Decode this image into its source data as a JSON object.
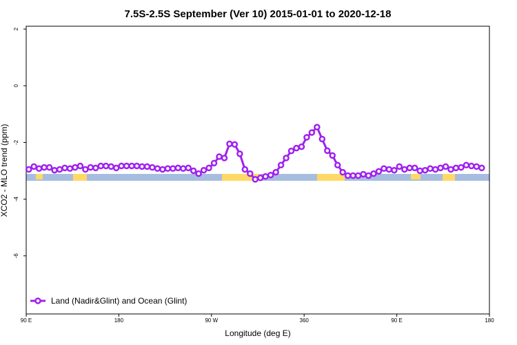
{
  "chart_data": {
    "type": "line",
    "title": "7.5S-2.5S September (Ver 10)   2015-01-01 to 2020-12-18",
    "x_label": "Longitude (deg E)",
    "y_label": "XCO2 - MLO trend (ppm)",
    "x": [
      92.5,
      97.5,
      102.5,
      107.5,
      112.5,
      117.5,
      122.5,
      127.5,
      132.5,
      137.5,
      142.5,
      147.5,
      152.5,
      157.5,
      162.5,
      167.5,
      172.5,
      177.5,
      182.5,
      187.5,
      192.5,
      197.5,
      202.5,
      207.5,
      212.5,
      217.5,
      222.5,
      227.5,
      232.5,
      237.5,
      242.5,
      247.5,
      252.5,
      257.5,
      262.5,
      267.5,
      272.5,
      277.5,
      282.5,
      287.5,
      292.5,
      297.5,
      302.5,
      307.5,
      312.5,
      317.5,
      322.5,
      327.5,
      332.5,
      337.5,
      342.5,
      347.5,
      352.5,
      357.5,
      362.5,
      367.5,
      372.5,
      377.5,
      382.5,
      387.5,
      392.5,
      397.5,
      402.5,
      407.5,
      412.5,
      417.5,
      422.5,
      427.5,
      432.5,
      437.5,
      442.5,
      447.5,
      452.5,
      457.5,
      462.5,
      467.5,
      472.5,
      477.5,
      482.5,
      487.5,
      492.5,
      497.5,
      502.5,
      507.5,
      512.5,
      517.5,
      522.5,
      527.5,
      532.5
    ],
    "series": [
      {
        "name": "Land (Nadir&Glint) and Ocean (Glint)",
        "color": "#a020f0",
        "values": [
          -2.95,
          -2.85,
          -2.92,
          -2.88,
          -2.88,
          -2.98,
          -2.95,
          -2.9,
          -2.92,
          -2.88,
          -2.83,
          -2.95,
          -2.88,
          -2.9,
          -2.83,
          -2.83,
          -2.85,
          -2.9,
          -2.83,
          -2.83,
          -2.83,
          -2.83,
          -2.85,
          -2.85,
          -2.88,
          -2.92,
          -2.95,
          -2.92,
          -2.92,
          -2.9,
          -2.92,
          -2.9,
          -3.0,
          -3.1,
          -2.98,
          -2.9,
          -2.73,
          -2.5,
          -2.55,
          -2.05,
          -2.07,
          -2.4,
          -2.95,
          -3.1,
          -3.3,
          -3.25,
          -3.2,
          -3.15,
          -3.05,
          -2.8,
          -2.55,
          -2.3,
          -2.2,
          -2.15,
          -1.82,
          -1.65,
          -1.46,
          -1.88,
          -2.29,
          -2.46,
          -2.8,
          -3.05,
          -3.17,
          -3.17,
          -3.17,
          -3.12,
          -3.17,
          -3.1,
          -3.02,
          -2.92,
          -2.95,
          -2.98,
          -2.85,
          -2.95,
          -2.9,
          -2.9,
          -3.0,
          -2.98,
          -2.92,
          -2.95,
          -2.9,
          -2.85,
          -2.95,
          -2.9,
          -2.88,
          -2.8,
          -2.83,
          -2.85,
          -2.9
        ]
      }
    ],
    "xlim": [
      90,
      540
    ],
    "xticks": [
      {
        "value": 90,
        "label": "90 E"
      },
      180,
      {
        "value": 270,
        "label": "90 W"
      },
      360,
      {
        "value": 450,
        "label": "90 E"
      },
      {
        "value": 540,
        "label": "180"
      }
    ],
    "ylim": [
      -8.05,
      2.1
    ],
    "yticks": [
      2,
      0,
      -2,
      -4,
      -6
    ],
    "legend": "bottom-left"
  }
}
